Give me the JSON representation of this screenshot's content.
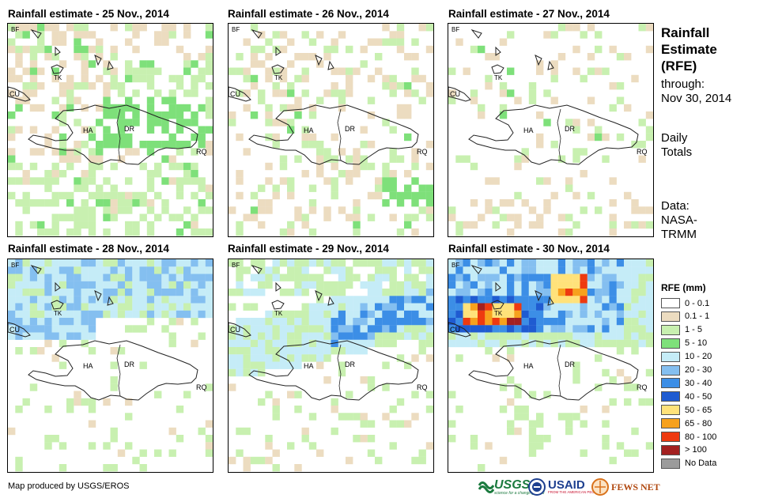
{
  "panels": [
    {
      "title": "Rainfall estimate - 25 Nov., 2014",
      "pattern": "d25"
    },
    {
      "title": "Rainfall estimate - 26 Nov., 2014",
      "pattern": "d26"
    },
    {
      "title": "Rainfall estimate - 27 Nov., 2014",
      "pattern": "d27"
    },
    {
      "title": "Rainfall estimate - 28 Nov., 2014",
      "pattern": "d28"
    },
    {
      "title": "Rainfall estimate - 29 Nov., 2014",
      "pattern": "d29"
    },
    {
      "title": "Rainfall estimate - 30 Nov., 2014",
      "pattern": "d30"
    }
  ],
  "map_labels": {
    "bf": "BF",
    "cu": "CU",
    "tk": "TK",
    "ha": "HA",
    "dr": "DR",
    "rq": "RQ"
  },
  "side": {
    "title_lines": [
      "Rainfall",
      "Estimate",
      "(RFE)"
    ],
    "through_label": "through:",
    "date": "Nov 30, 2014",
    "totals_lines": [
      "Daily",
      "Totals"
    ],
    "data_lines": [
      "Data:",
      "NASA-",
      "TRMM"
    ]
  },
  "legend": {
    "title": "RFE (mm)",
    "items": [
      {
        "label": "0 - 0.1",
        "color": "#ffffff"
      },
      {
        "label": "0.1 - 1",
        "color": "#ecdcc0"
      },
      {
        "label": "1 - 5",
        "color": "#c8f0b0"
      },
      {
        "label": "5 - 10",
        "color": "#7ee07a"
      },
      {
        "label": "10 - 20",
        "color": "#c5ecf7"
      },
      {
        "label": "20 - 30",
        "color": "#84bff0"
      },
      {
        "label": "30 - 40",
        "color": "#3c8ee6"
      },
      {
        "label": "40 - 50",
        "color": "#1f5bd1"
      },
      {
        "label": "50 - 65",
        "color": "#ffe27a"
      },
      {
        "label": "65 - 80",
        "color": "#f7a11d"
      },
      {
        "label": "80 - 100",
        "color": "#ee3a10"
      },
      {
        "label": "> 100",
        "color": "#a32020"
      },
      {
        "label": "No Data",
        "color": "#9b9b9b"
      }
    ]
  },
  "footer": {
    "credit": "Map produced by USGS/EROS",
    "usgs": "USGS",
    "usgs_tagline": "science for a changing world",
    "usaid": "USAID",
    "usaid_tagline": "FROM THE AMERICAN PEOPLE",
    "fewsnet": "FEWS NET"
  },
  "colors": {
    "usgs_green": "#1b7a3e",
    "usaid_blue": "#1d3f8f",
    "usaid_red": "#c8102e",
    "fews_orange": "#d9721b",
    "coast": "#222222"
  }
}
